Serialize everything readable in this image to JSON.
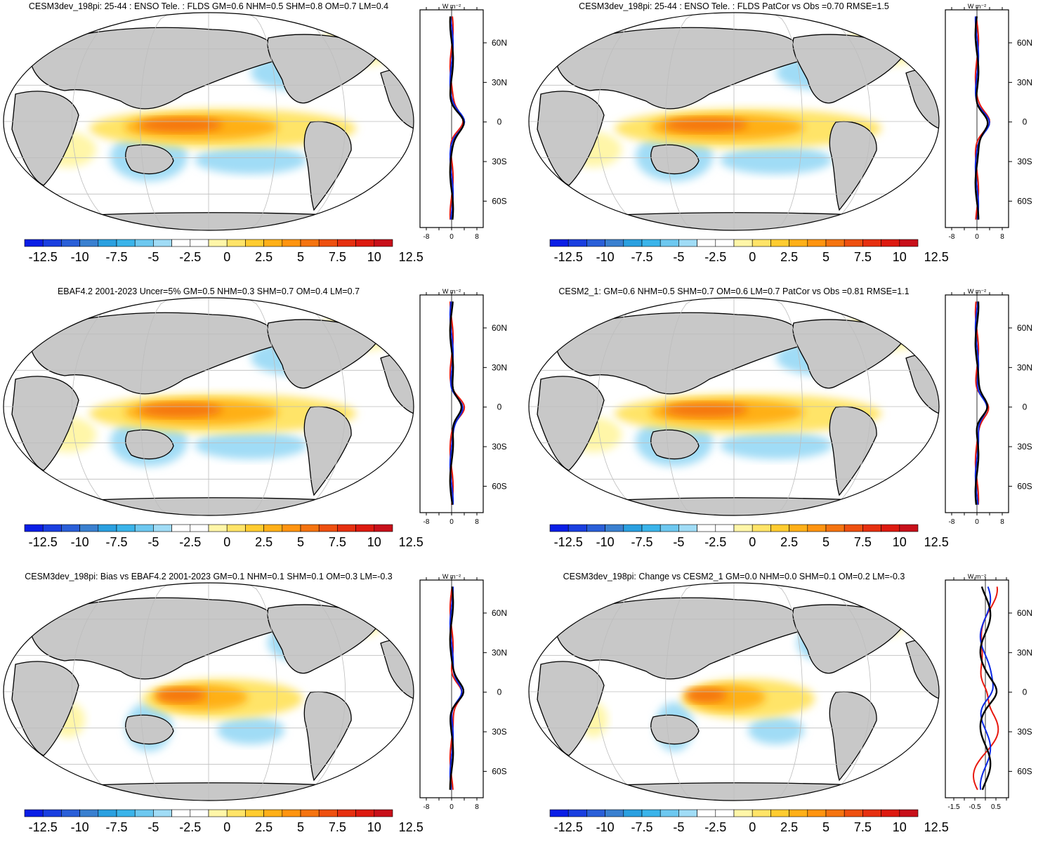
{
  "colorbar": {
    "labels": [
      "-12.5",
      "-10",
      "-7.5",
      "-5",
      "-2.5",
      "0",
      "2.5",
      "5",
      "7.5",
      "10",
      "12.5"
    ],
    "colors": [
      "#0a1ee6",
      "#1a3fe0",
      "#2a5fd8",
      "#3a80d0",
      "#2aa0e0",
      "#3ab4ea",
      "#6dc8f0",
      "#a0dcf6",
      "#ffffff",
      "#ffffff",
      "#fff6a8",
      "#ffe468",
      "#ffcc30",
      "#ffb018",
      "#ff9410",
      "#f57410",
      "#ee5010",
      "#e63010",
      "#dd1a10",
      "#c8101a"
    ]
  },
  "profile": {
    "unit_label": "W m⁻²",
    "lat_ticks": [
      "60N",
      "30N",
      "0",
      "30S",
      "60S"
    ],
    "lat_tick_values": [
      60,
      30,
      0,
      -30,
      -60
    ],
    "series_colors": {
      "model": "#e8190f",
      "obs": "#0a28e6",
      "mean": "#000000"
    }
  },
  "panels": [
    {
      "id": "p1",
      "title": "CESM3dev_198pi: 25-44 : ENSO Tele. : FLDS GM=0.6 NHM=0.5 SHM=0.8 OM=0.7 LM=0.4",
      "chart_data": {
        "type": "heatmap",
        "title": "CESM3dev_198pi: 25-44 : ENSO Tele. : FLDS GM=0.6 NHM=0.5 SHM=0.8 OM=0.7 LM=0.4",
        "stats": {
          "GM": 0.6,
          "NHM": 0.5,
          "SHM": 0.8,
          "OM": 0.7,
          "LM": 0.4
        },
        "profile": {
          "xlim": [
            -10,
            10
          ],
          "xticks": [
            "-8",
            "0",
            "8"
          ],
          "ylim": [
            -80,
            85
          ]
        }
      }
    },
    {
      "id": "p2",
      "title": "CESM3dev_198pi: 25-44 : ENSO Tele. : FLDS PatCor vs Obs =0.70 RMSE=1.5",
      "chart_data": {
        "type": "heatmap",
        "title": "CESM3dev_198pi: 25-44 : ENSO Tele. : FLDS PatCor vs Obs =0.70 RMSE=1.5",
        "stats": {
          "PatCor": 0.7,
          "RMSE": 1.5
        },
        "profile": {
          "xlim": [
            -10,
            10
          ],
          "xticks": [
            "-8",
            "0",
            "8"
          ],
          "ylim": [
            -80,
            85
          ]
        }
      }
    },
    {
      "id": "p3",
      "title": "EBAF4.2 2001-2023 Uncer=5% GM=0.5 NHM=0.3 SHM=0.7 OM=0.4 LM=0.7",
      "chart_data": {
        "type": "heatmap",
        "title": "EBAF4.2 2001-2023 Uncer=5% GM=0.5 NHM=0.3 SHM=0.7 OM=0.4 LM=0.7",
        "stats": {
          "GM": 0.5,
          "NHM": 0.3,
          "SHM": 0.7,
          "OM": 0.4,
          "LM": 0.7
        },
        "profile": {
          "xlim": [
            -10,
            10
          ],
          "xticks": [
            "-8",
            "0",
            "8"
          ],
          "ylim": [
            -80,
            85
          ]
        }
      }
    },
    {
      "id": "p4",
      "title": "CESM2_1: GM=0.6 NHM=0.5 SHM=0.7 OM=0.6 LM=0.7 PatCor vs Obs =0.81 RMSE=1.1",
      "chart_data": {
        "type": "heatmap",
        "title": "CESM2_1: GM=0.6 NHM=0.5 SHM=0.7 OM=0.6 LM=0.7 PatCor vs Obs =0.81 RMSE=1.1",
        "stats": {
          "GM": 0.6,
          "NHM": 0.5,
          "SHM": 0.7,
          "OM": 0.6,
          "LM": 0.7,
          "PatCor": 0.81,
          "RMSE": 1.1
        },
        "profile": {
          "xlim": [
            -10,
            10
          ],
          "xticks": [
            "-8",
            "0",
            "8"
          ],
          "ylim": [
            -80,
            85
          ]
        }
      }
    },
    {
      "id": "p5",
      "title": "CESM3dev_198pi: Bias vs EBAF4.2 2001-2023 GM=0.1 NHM=0.1 SHM=0.1 OM=0.3 LM=-0.3",
      "chart_data": {
        "type": "heatmap",
        "title": "CESM3dev_198pi: Bias vs EBAF4.2 2001-2023 GM=0.1 NHM=0.1 SHM=0.1 OM=0.3 LM=-0.3",
        "stats": {
          "GM": 0.1,
          "NHM": 0.1,
          "SHM": 0.1,
          "OM": 0.3,
          "LM": -0.3
        },
        "profile": {
          "xlim": [
            -10,
            10
          ],
          "xticks": [
            "-8",
            "0",
            "8"
          ],
          "ylim": [
            -80,
            85
          ]
        }
      }
    },
    {
      "id": "p6",
      "title": "CESM3dev_198pi: Change vs CESM2_1 GM=0.0 NHM=0.0 SHM=0.1 OM=0.2 LM=-0.3",
      "chart_data": {
        "type": "heatmap",
        "title": "CESM3dev_198pi: Change vs CESM2_1 GM=0.0 NHM=0.0 SHM=0.1 OM=0.2 LM=-0.3",
        "stats": {
          "GM": 0.0,
          "NHM": 0.0,
          "SHM": 0.1,
          "OM": 0.2,
          "LM": -0.3
        },
        "profile": {
          "xlim": [
            -1.9,
            1.1
          ],
          "xticks": [
            "-1.5",
            "-0.5",
            "0.5"
          ],
          "ylim": [
            -80,
            85
          ]
        }
      }
    }
  ]
}
